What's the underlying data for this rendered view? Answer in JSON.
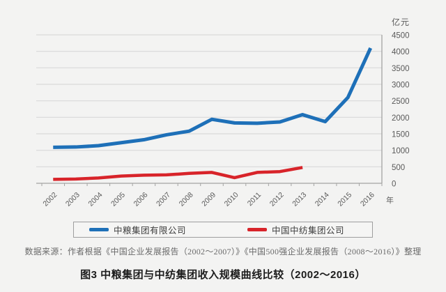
{
  "colors": {
    "background": "#f3f3f2",
    "gridline": "#d9d9d8",
    "axis_line": "#a3a3a2",
    "tick_label": "#595959",
    "series_blue": "#1e70b8",
    "series_red": "#d8242a"
  },
  "chart_data": {
    "type": "line",
    "unit_label": "亿元",
    "x_axis_label": "年",
    "categories": [
      "2002",
      "2003",
      "2004",
      "2005",
      "2006",
      "2007",
      "2008",
      "2009",
      "2010",
      "2011",
      "2012",
      "2013",
      "2014",
      "2015",
      "2016"
    ],
    "series": [
      {
        "name": "中粮集团有限公司",
        "color": "#1e70b8",
        "values": [
          1090,
          1100,
          1140,
          1230,
          1320,
          1470,
          1580,
          1940,
          1830,
          1820,
          1860,
          2080,
          1870,
          2600,
          4100
        ]
      },
      {
        "name": "中国中纺集团公司",
        "color": "#d8242a",
        "values": [
          120,
          130,
          160,
          220,
          245,
          255,
          300,
          330,
          170,
          330,
          355,
          480,
          null,
          null,
          null
        ]
      }
    ],
    "ylim": [
      0,
      4500
    ],
    "ytick_step": 500,
    "grid": "horizontal",
    "legend_position": "bottom"
  },
  "source_note": "数据来源：作者根据《中国企业发展报告（2002～2007）》《中国500强企业发展报告（2008～2016）》整理",
  "caption": "图3 中粮集团与中纺集团收入规模曲线比较（2002～2016）"
}
